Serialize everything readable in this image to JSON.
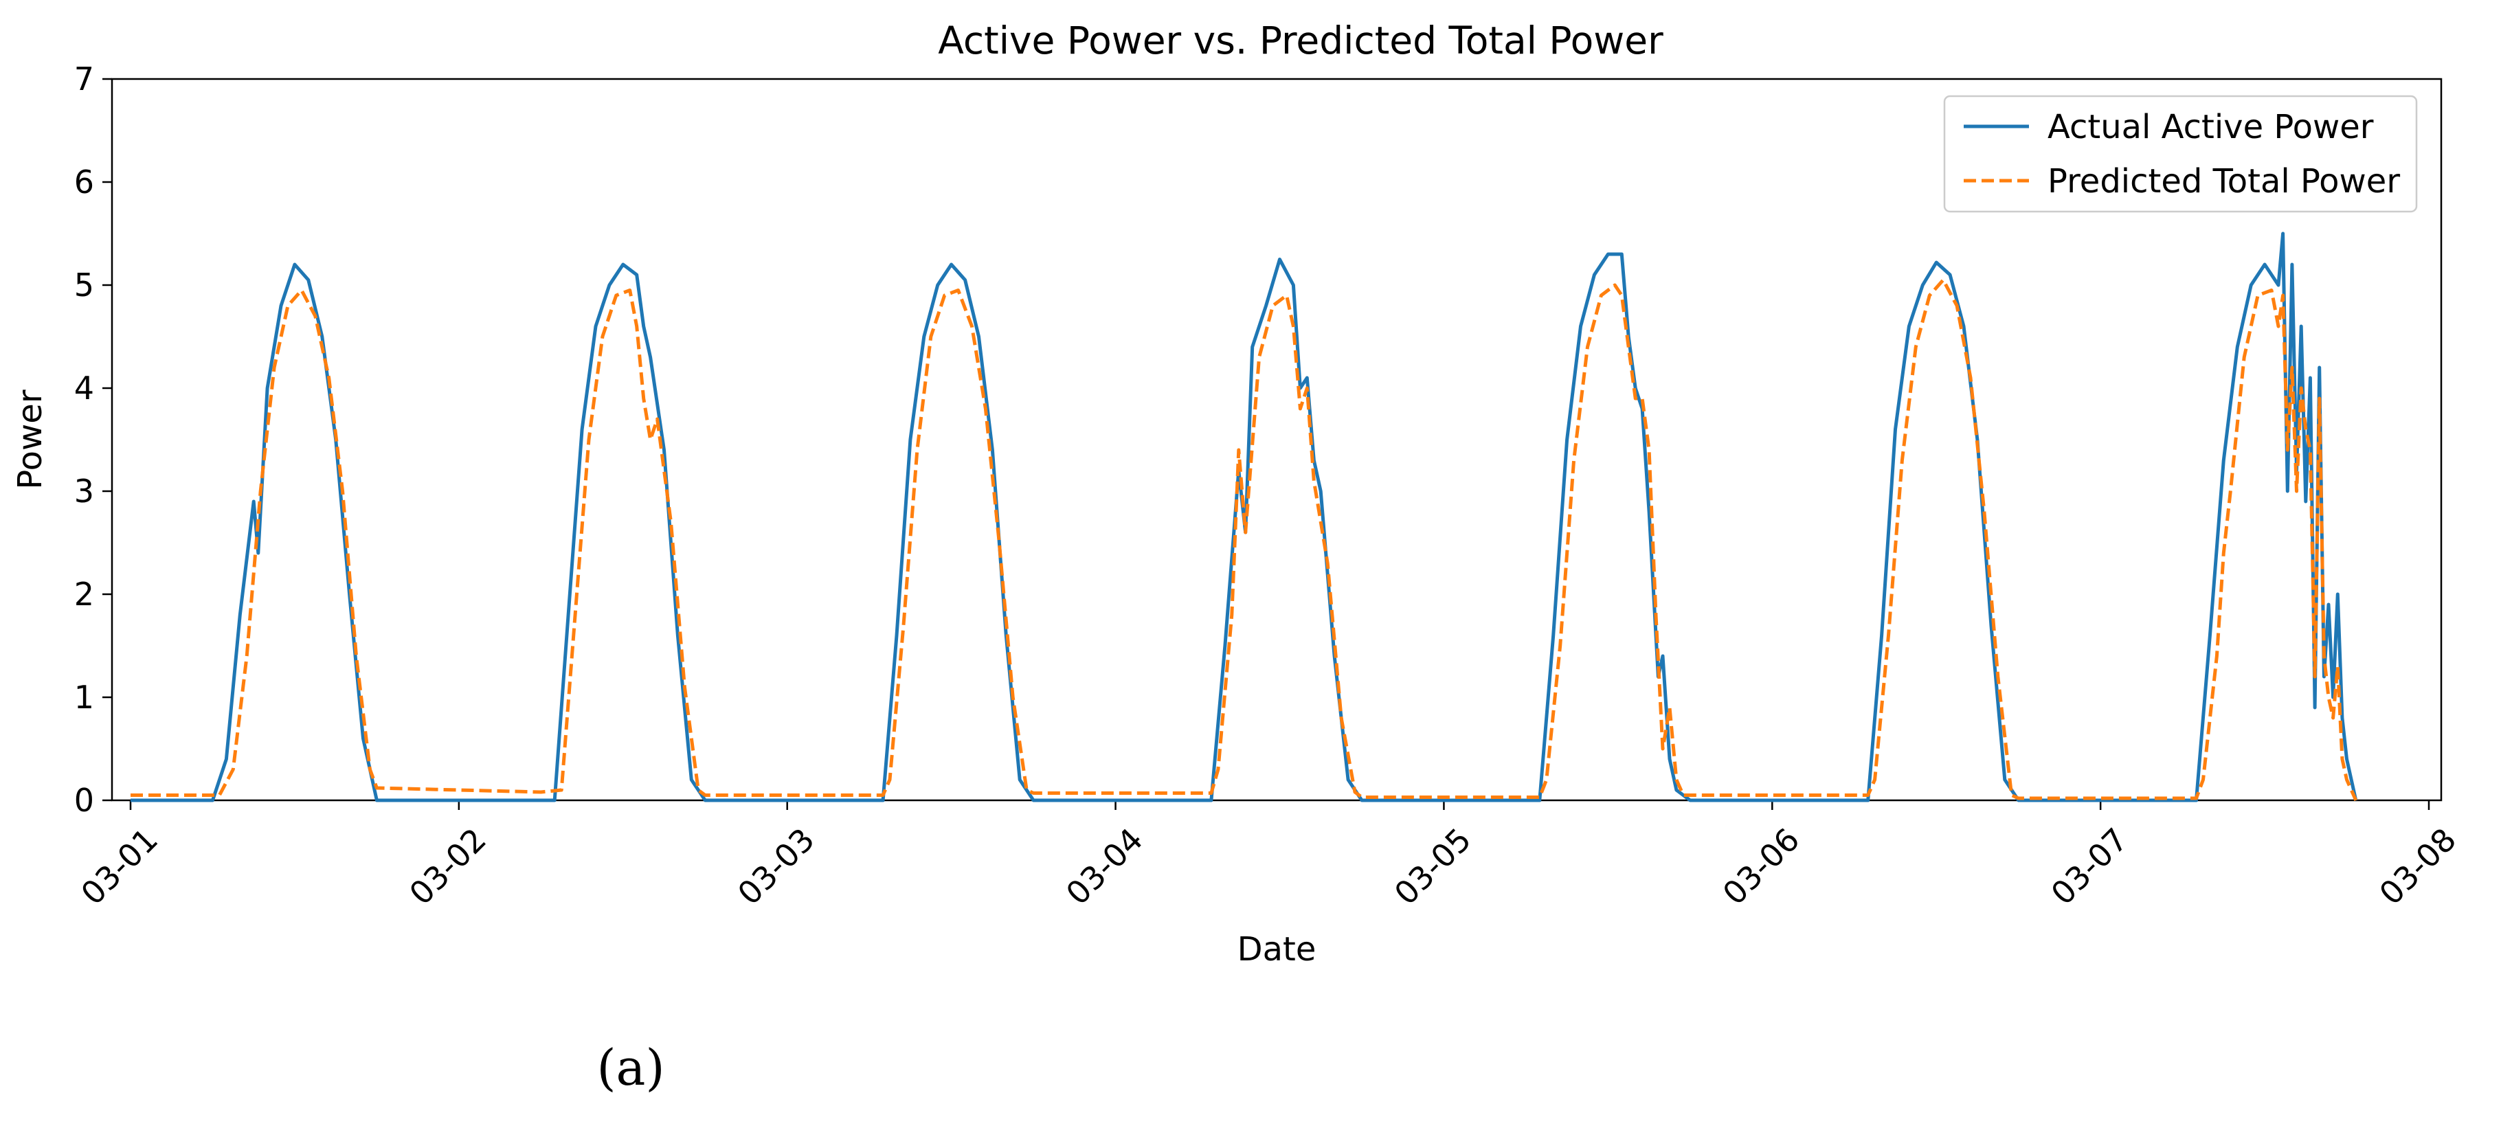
{
  "chart_data": {
    "type": "line",
    "title": "Active Power vs. Predicted Total Power",
    "xlabel": "Date",
    "ylabel": "Power",
    "x_ticks": [
      "03-01",
      "03-02",
      "03-03",
      "03-04",
      "03-05",
      "03-06",
      "03-07",
      "03-08"
    ],
    "y_ticks": [
      "0",
      "1",
      "2",
      "3",
      "4",
      "5",
      "6",
      "7"
    ],
    "xlim": [
      "03-01",
      "03-08"
    ],
    "ylim": [
      0,
      7
    ],
    "grid": false,
    "legend": "top-right",
    "series": [
      {
        "name": "Actual Active Power",
        "color": "#1f77b4",
        "style": "solid",
        "points": [
          [
            "03-01 00:00",
            0
          ],
          [
            "03-01 06:00",
            0
          ],
          [
            "03-01 07:00",
            0.4
          ],
          [
            "03-01 08:00",
            1.8
          ],
          [
            "03-01 09:00",
            2.9
          ],
          [
            "03-01 09:20",
            2.4
          ],
          [
            "03-01 10:00",
            4.0
          ],
          [
            "03-01 11:00",
            4.8
          ],
          [
            "03-01 12:00",
            5.2
          ],
          [
            "03-01 13:00",
            5.05
          ],
          [
            "03-01 14:00",
            4.5
          ],
          [
            "03-01 15:00",
            3.5
          ],
          [
            "03-01 16:00",
            2.0
          ],
          [
            "03-01 17:00",
            0.6
          ],
          [
            "03-01 18:00",
            0
          ],
          [
            "03-02 07:00",
            0
          ],
          [
            "03-02 08:00",
            1.8
          ],
          [
            "03-02 09:00",
            3.6
          ],
          [
            "03-02 10:00",
            4.6
          ],
          [
            "03-02 11:00",
            5.0
          ],
          [
            "03-02 12:00",
            5.2
          ],
          [
            "03-02 13:00",
            5.1
          ],
          [
            "03-02 13:30",
            4.6
          ],
          [
            "03-02 14:00",
            4.3
          ],
          [
            "03-02 15:00",
            3.4
          ],
          [
            "03-02 16:00",
            1.6
          ],
          [
            "03-02 17:00",
            0.2
          ],
          [
            "03-02 18:00",
            0
          ],
          [
            "03-03 07:00",
            0
          ],
          [
            "03-03 08:00",
            1.6
          ],
          [
            "03-03 09:00",
            3.5
          ],
          [
            "03-03 10:00",
            4.5
          ],
          [
            "03-03 11:00",
            5.0
          ],
          [
            "03-03 12:00",
            5.2
          ],
          [
            "03-03 13:00",
            5.05
          ],
          [
            "03-03 14:00",
            4.5
          ],
          [
            "03-03 15:00",
            3.4
          ],
          [
            "03-03 16:00",
            1.6
          ],
          [
            "03-03 17:00",
            0.2
          ],
          [
            "03-03 18:00",
            0
          ],
          [
            "03-04 07:00",
            0
          ],
          [
            "03-04 08:00",
            1.5
          ],
          [
            "03-04 09:00",
            3.2
          ],
          [
            "03-04 09:30",
            2.6
          ],
          [
            "03-04 10:00",
            4.4
          ],
          [
            "03-04 11:00",
            4.8
          ],
          [
            "03-04 12:00",
            5.25
          ],
          [
            "03-04 13:00",
            5.0
          ],
          [
            "03-04 13:30",
            4.0
          ],
          [
            "03-04 14:00",
            4.1
          ],
          [
            "03-04 14:30",
            3.3
          ],
          [
            "03-04 15:00",
            3.0
          ],
          [
            "03-04 16:00",
            1.4
          ],
          [
            "03-04 17:00",
            0.2
          ],
          [
            "03-04 18:00",
            0
          ],
          [
            "03-05 07:00",
            0
          ],
          [
            "03-05 08:00",
            1.6
          ],
          [
            "03-05 09:00",
            3.5
          ],
          [
            "03-05 10:00",
            4.6
          ],
          [
            "03-05 11:00",
            5.1
          ],
          [
            "03-05 12:00",
            5.3
          ],
          [
            "03-05 13:00",
            5.3
          ],
          [
            "03-05 13:30",
            4.5
          ],
          [
            "03-05 14:00",
            4.0
          ],
          [
            "03-05 14:30",
            3.8
          ],
          [
            "03-05 15:00",
            2.8
          ],
          [
            "03-05 15:40",
            1.2
          ],
          [
            "03-05 16:00",
            1.4
          ],
          [
            "03-05 16:30",
            0.4
          ],
          [
            "03-05 17:00",
            0.1
          ],
          [
            "03-05 18:00",
            0
          ],
          [
            "03-06 07:00",
            0
          ],
          [
            "03-06 08:00",
            1.6
          ],
          [
            "03-06 09:00",
            3.6
          ],
          [
            "03-06 10:00",
            4.6
          ],
          [
            "03-06 11:00",
            5.0
          ],
          [
            "03-06 12:00",
            5.22
          ],
          [
            "03-06 13:00",
            5.1
          ],
          [
            "03-06 14:00",
            4.6
          ],
          [
            "03-06 15:00",
            3.5
          ],
          [
            "03-06 16:00",
            1.7
          ],
          [
            "03-06 17:00",
            0.2
          ],
          [
            "03-06 18:00",
            0
          ],
          [
            "03-07 07:00",
            0
          ],
          [
            "03-07 08:00",
            1.6
          ],
          [
            "03-07 09:00",
            3.3
          ],
          [
            "03-07 10:00",
            4.4
          ],
          [
            "03-07 11:00",
            5.0
          ],
          [
            "03-07 12:00",
            5.2
          ],
          [
            "03-07 13:00",
            5.0
          ],
          [
            "03-07 13:20",
            5.5
          ],
          [
            "03-07 13:40",
            3.0
          ],
          [
            "03-07 14:00",
            5.2
          ],
          [
            "03-07 14:20",
            3.2
          ],
          [
            "03-07 14:40",
            4.6
          ],
          [
            "03-07 15:00",
            2.9
          ],
          [
            "03-07 15:20",
            4.1
          ],
          [
            "03-07 15:40",
            0.9
          ],
          [
            "03-07 16:00",
            4.2
          ],
          [
            "03-07 16:20",
            1.2
          ],
          [
            "03-07 16:40",
            1.9
          ],
          [
            "03-07 17:00",
            1.0
          ],
          [
            "03-07 17:20",
            2.0
          ],
          [
            "03-07 17:40",
            0.8
          ],
          [
            "03-07 18:00",
            0.4
          ],
          [
            "03-07 18:40",
            0
          ]
        ]
      },
      {
        "name": "Predicted Total Power",
        "color": "#ff7f0e",
        "style": "dashed",
        "points": [
          [
            "03-01 00:00",
            0.05
          ],
          [
            "03-01 06:30",
            0.05
          ],
          [
            "03-01 07:30",
            0.3
          ],
          [
            "03-01 08:30",
            1.4
          ],
          [
            "03-01 09:30",
            3.0
          ],
          [
            "03-01 10:30",
            4.2
          ],
          [
            "03-01 11:30",
            4.8
          ],
          [
            "03-01 12:30",
            4.95
          ],
          [
            "03-01 13:30",
            4.7
          ],
          [
            "03-01 14:30",
            4.1
          ],
          [
            "03-01 15:30",
            3.0
          ],
          [
            "03-01 16:30",
            1.4
          ],
          [
            "03-01 17:30",
            0.3
          ],
          [
            "03-01 18:00",
            0.12
          ],
          [
            "03-02 06:00",
            0.08
          ],
          [
            "03-02 07:30",
            0.1
          ],
          [
            "03-02 08:30",
            1.8
          ],
          [
            "03-02 09:30",
            3.5
          ],
          [
            "03-02 10:30",
            4.5
          ],
          [
            "03-02 11:30",
            4.9
          ],
          [
            "03-02 12:30",
            4.95
          ],
          [
            "03-02 13:00",
            4.6
          ],
          [
            "03-02 13:30",
            3.9
          ],
          [
            "03-02 14:00",
            3.5
          ],
          [
            "03-02 14:30",
            3.7
          ],
          [
            "03-02 15:30",
            2.7
          ],
          [
            "03-02 16:30",
            1.1
          ],
          [
            "03-02 17:30",
            0.1
          ],
          [
            "03-02 18:00",
            0.05
          ],
          [
            "03-03 07:00",
            0.05
          ],
          [
            "03-03 07:30",
            0.2
          ],
          [
            "03-03 08:30",
            1.7
          ],
          [
            "03-03 09:30",
            3.4
          ],
          [
            "03-03 10:30",
            4.5
          ],
          [
            "03-03 11:30",
            4.9
          ],
          [
            "03-03 12:30",
            4.95
          ],
          [
            "03-03 13:30",
            4.6
          ],
          [
            "03-03 14:30",
            3.8
          ],
          [
            "03-03 15:30",
            2.5
          ],
          [
            "03-03 16:30",
            1.0
          ],
          [
            "03-03 17:30",
            0.1
          ],
          [
            "03-03 18:00",
            0.07
          ],
          [
            "03-04 07:00",
            0.07
          ],
          [
            "03-04 07:30",
            0.3
          ],
          [
            "03-04 08:30",
            1.8
          ],
          [
            "03-04 09:00",
            3.4
          ],
          [
            "03-04 09:30",
            2.6
          ],
          [
            "03-04 10:30",
            4.3
          ],
          [
            "03-04 11:30",
            4.8
          ],
          [
            "03-04 12:30",
            4.9
          ],
          [
            "03-04 13:00",
            4.6
          ],
          [
            "03-04 13:30",
            3.8
          ],
          [
            "03-04 14:00",
            4.0
          ],
          [
            "03-04 14:30",
            3.1
          ],
          [
            "03-04 15:30",
            2.3
          ],
          [
            "03-04 16:30",
            0.8
          ],
          [
            "03-04 17:30",
            0.08
          ],
          [
            "03-04 18:00",
            0.03
          ],
          [
            "03-05 07:00",
            0.03
          ],
          [
            "03-05 07:30",
            0.2
          ],
          [
            "03-05 08:30",
            1.5
          ],
          [
            "03-05 09:30",
            3.3
          ],
          [
            "03-05 10:30",
            4.4
          ],
          [
            "03-05 11:30",
            4.9
          ],
          [
            "03-05 12:30",
            5.0
          ],
          [
            "03-05 13:00",
            4.9
          ],
          [
            "03-05 13:30",
            4.4
          ],
          [
            "03-05 14:00",
            3.9
          ],
          [
            "03-05 14:30",
            3.9
          ],
          [
            "03-05 15:00",
            3.4
          ],
          [
            "03-05 15:30",
            1.8
          ],
          [
            "03-05 16:00",
            0.5
          ],
          [
            "03-05 16:30",
            0.9
          ],
          [
            "03-05 17:00",
            0.2
          ],
          [
            "03-05 17:30",
            0.05
          ],
          [
            "03-06 07:00",
            0.05
          ],
          [
            "03-06 07:30",
            0.2
          ],
          [
            "03-06 08:30",
            1.6
          ],
          [
            "03-06 09:30",
            3.3
          ],
          [
            "03-06 10:30",
            4.4
          ],
          [
            "03-06 11:30",
            4.9
          ],
          [
            "03-06 12:30",
            5.05
          ],
          [
            "03-06 13:30",
            4.8
          ],
          [
            "03-06 14:30",
            4.1
          ],
          [
            "03-06 15:30",
            2.8
          ],
          [
            "03-06 16:30",
            1.2
          ],
          [
            "03-06 17:30",
            0.05
          ],
          [
            "03-06 18:00",
            0.02
          ],
          [
            "03-07 07:00",
            0.02
          ],
          [
            "03-07 07:30",
            0.2
          ],
          [
            "03-07 08:30",
            1.4
          ],
          [
            "03-07 09:00",
            2.4
          ],
          [
            "03-07 09:30",
            3.0
          ],
          [
            "03-07 10:30",
            4.3
          ],
          [
            "03-07 11:30",
            4.9
          ],
          [
            "03-07 12:30",
            4.95
          ],
          [
            "03-07 13:00",
            4.6
          ],
          [
            "03-07 13:20",
            4.9
          ],
          [
            "03-07 13:40",
            3.4
          ],
          [
            "03-07 14:00",
            4.2
          ],
          [
            "03-07 14:20",
            3.0
          ],
          [
            "03-07 14:40",
            4.0
          ],
          [
            "03-07 15:00",
            3.6
          ],
          [
            "03-07 15:20",
            3.4
          ],
          [
            "03-07 15:40",
            1.2
          ],
          [
            "03-07 16:00",
            3.9
          ],
          [
            "03-07 16:20",
            1.4
          ],
          [
            "03-07 16:40",
            1.0
          ],
          [
            "03-07 17:00",
            0.8
          ],
          [
            "03-07 17:20",
            1.3
          ],
          [
            "03-07 17:40",
            0.4
          ],
          [
            "03-07 18:00",
            0.2
          ],
          [
            "03-07 18:40",
            0
          ]
        ]
      }
    ]
  },
  "caption": "(a)"
}
